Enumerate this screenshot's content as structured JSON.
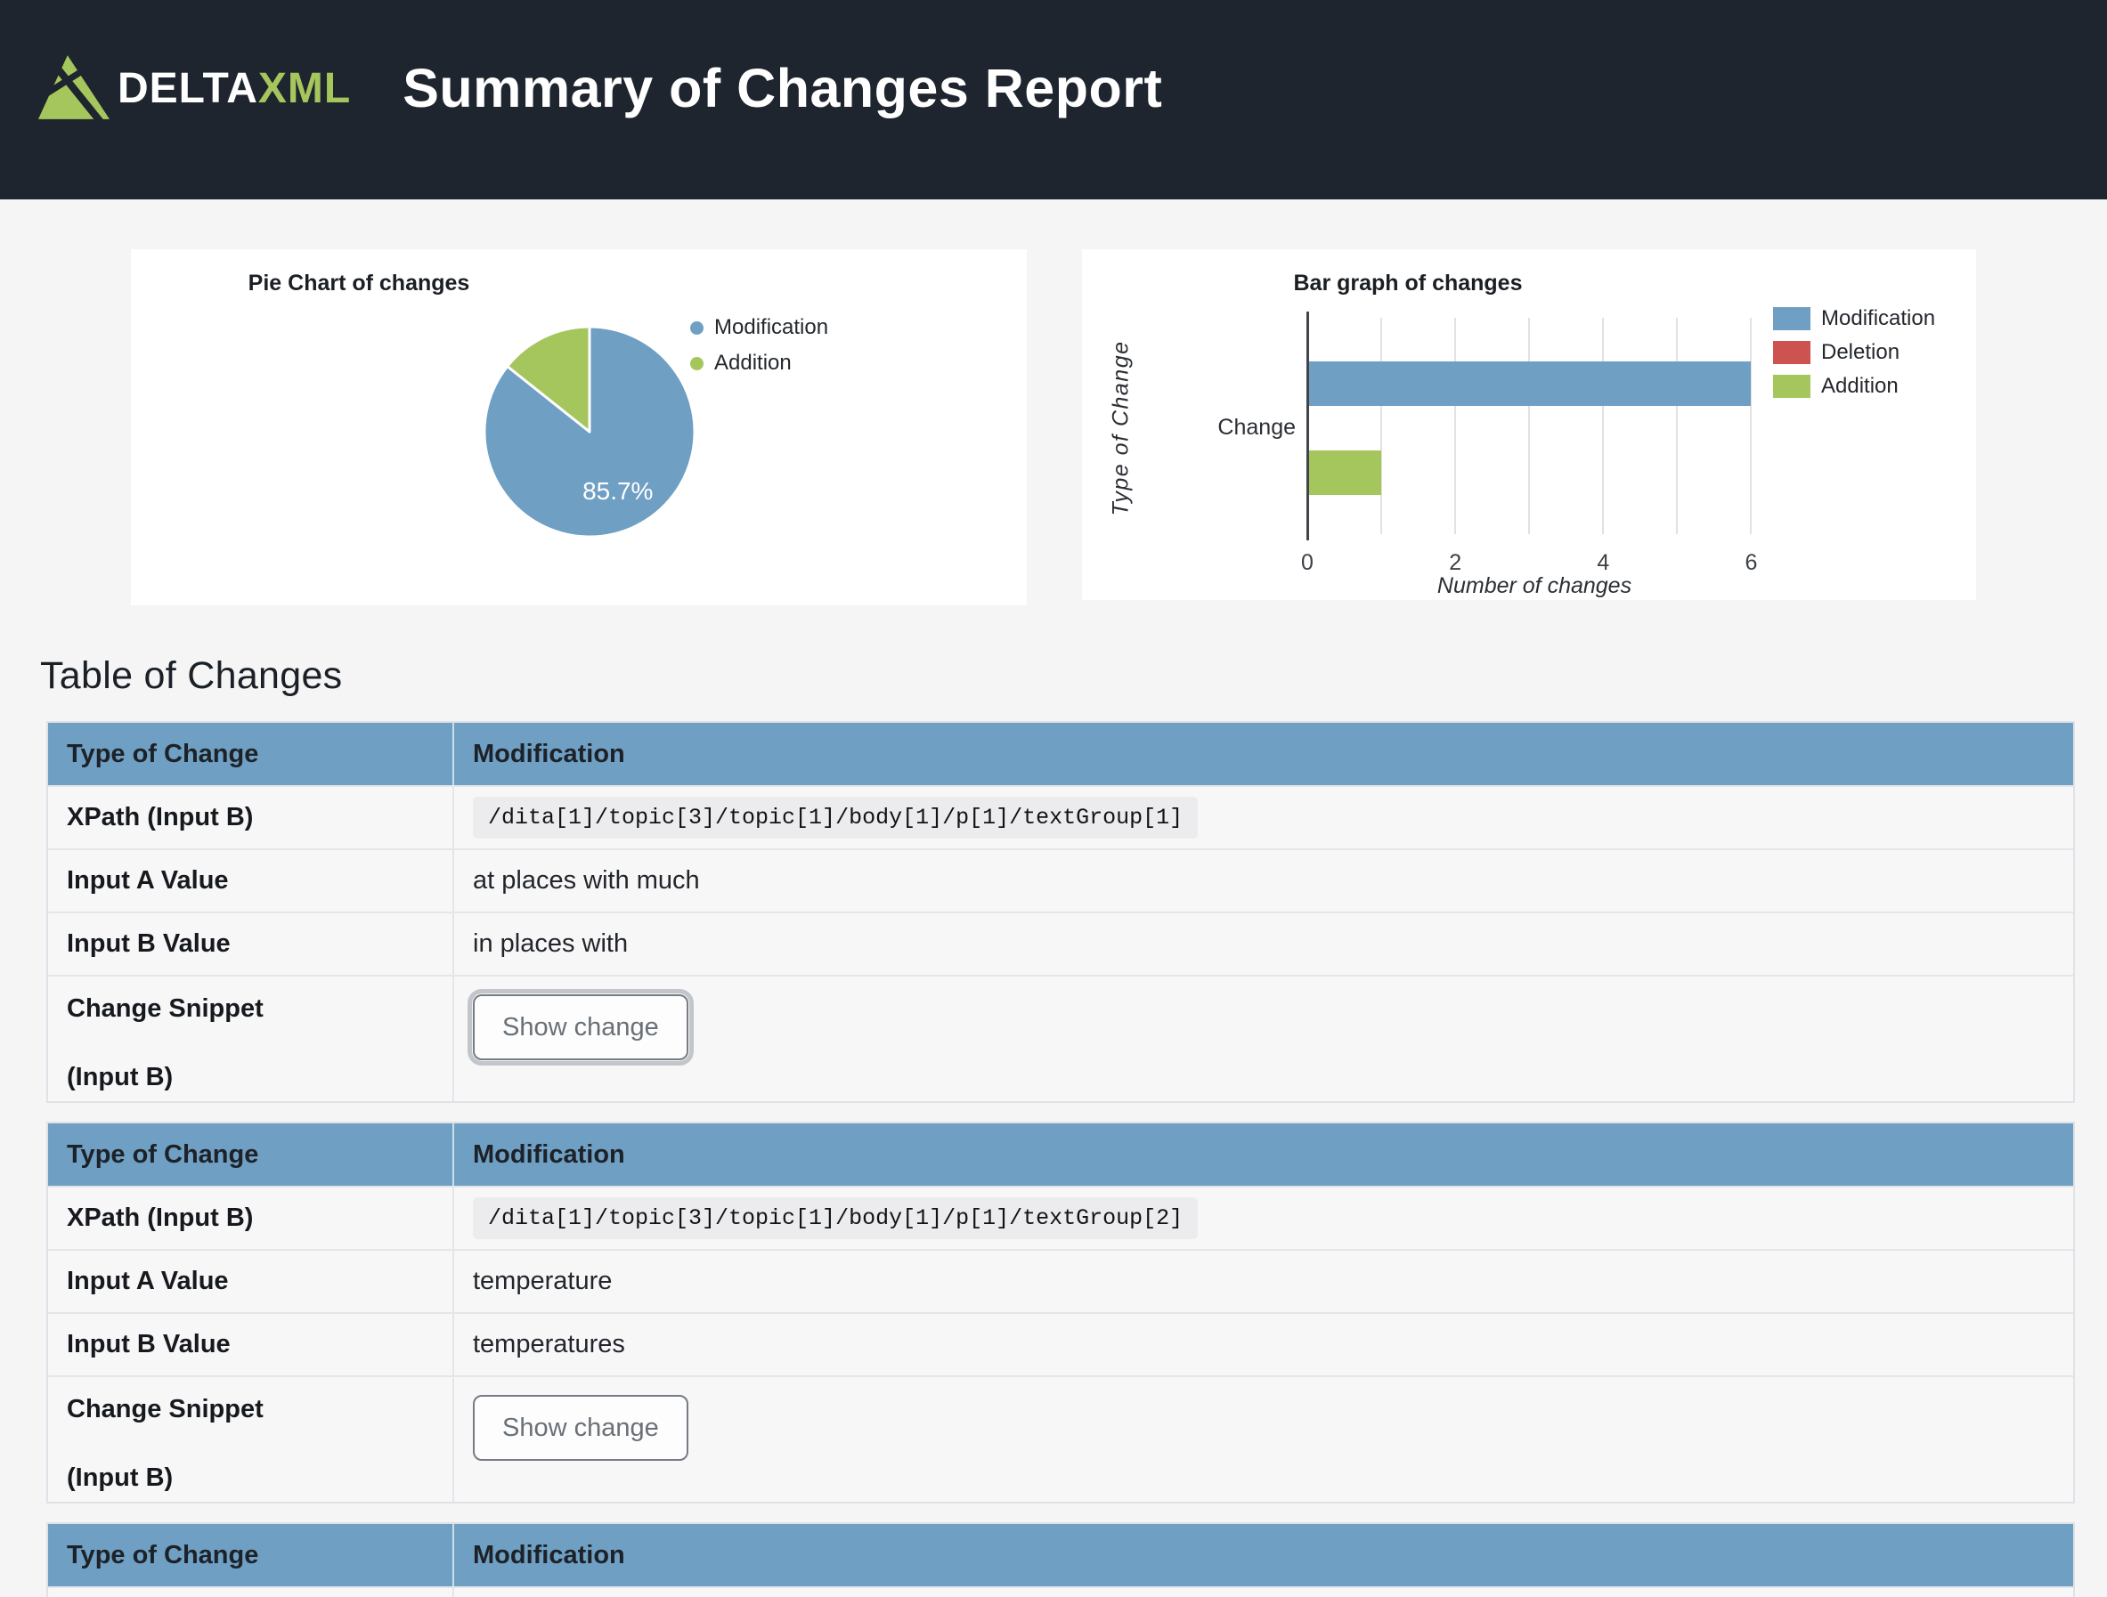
{
  "header": {
    "logo_delta": "DELTA",
    "logo_xml": "XML",
    "title": "Summary of Changes Report",
    "bg_color": "#1f252e",
    "logo_green": "#a5c65c"
  },
  "colors": {
    "modification": "#6f9fc3",
    "deletion": "#cd5351",
    "addition": "#a5c65c",
    "table_header_bg": "#6f9fc3",
    "header_bg": "#1f252e"
  },
  "chart_data": [
    {
      "type": "pie",
      "title": "Pie Chart of changes",
      "slices": [
        {
          "label": "Modification",
          "value": 85.7,
          "pct_label": "85.7%",
          "color": "#6f9fc3"
        },
        {
          "label": "Addition",
          "value": 14.3,
          "pct_label": "",
          "color": "#a5c65c"
        }
      ],
      "start_angle": "top",
      "direction": "clockwise",
      "legend_position": "right"
    },
    {
      "type": "bar",
      "orientation": "horizontal",
      "title": "Bar graph of changes",
      "categories": [
        "Change"
      ],
      "series": [
        {
          "name": "Modification",
          "values": [
            6
          ],
          "color": "#6f9fc3"
        },
        {
          "name": "Deletion",
          "values": [
            0
          ],
          "color": "#cd5351"
        },
        {
          "name": "Addition",
          "values": [
            1
          ],
          "color": "#a5c65c"
        }
      ],
      "xlabel": "Number of changes",
      "ylabel": "Type of Change",
      "xlim": [
        0,
        6.5
      ],
      "xticks": [
        0,
        2,
        4,
        6
      ],
      "gridlines": [
        0,
        1,
        2,
        3,
        4,
        5,
        6
      ],
      "grid": true,
      "legend_position": "right"
    }
  ],
  "table_section": {
    "heading": "Table of Changes",
    "tables": [
      {
        "header": {
          "label": "Type of Change",
          "value": "Modification"
        },
        "xpath": {
          "label": "XPath (Input B)",
          "value": "/dita[1]/topic[3]/topic[1]/body[1]/p[1]/textGroup[1]"
        },
        "input_a": {
          "label": "Input A Value",
          "value": "at places with much"
        },
        "input_b": {
          "label": "Input B Value",
          "value": "in places with"
        },
        "snippet": {
          "label_line1": "Change Snippet",
          "label_line2": "(Input B)",
          "button_label": "Show change"
        }
      },
      {
        "header": {
          "label": "Type of Change",
          "value": "Modification"
        },
        "xpath": {
          "label": "XPath (Input B)",
          "value": "/dita[1]/topic[3]/topic[1]/body[1]/p[1]/textGroup[2]"
        },
        "input_a": {
          "label": "Input A Value",
          "value": "temperature"
        },
        "input_b": {
          "label": "Input B Value",
          "value": "temperatures"
        },
        "snippet": {
          "label_line1": "Change Snippet",
          "label_line2": "(Input B)",
          "button_label": "Show change"
        }
      },
      {
        "header": {
          "label": "Type of Change",
          "value": "Modification"
        }
      }
    ]
  }
}
